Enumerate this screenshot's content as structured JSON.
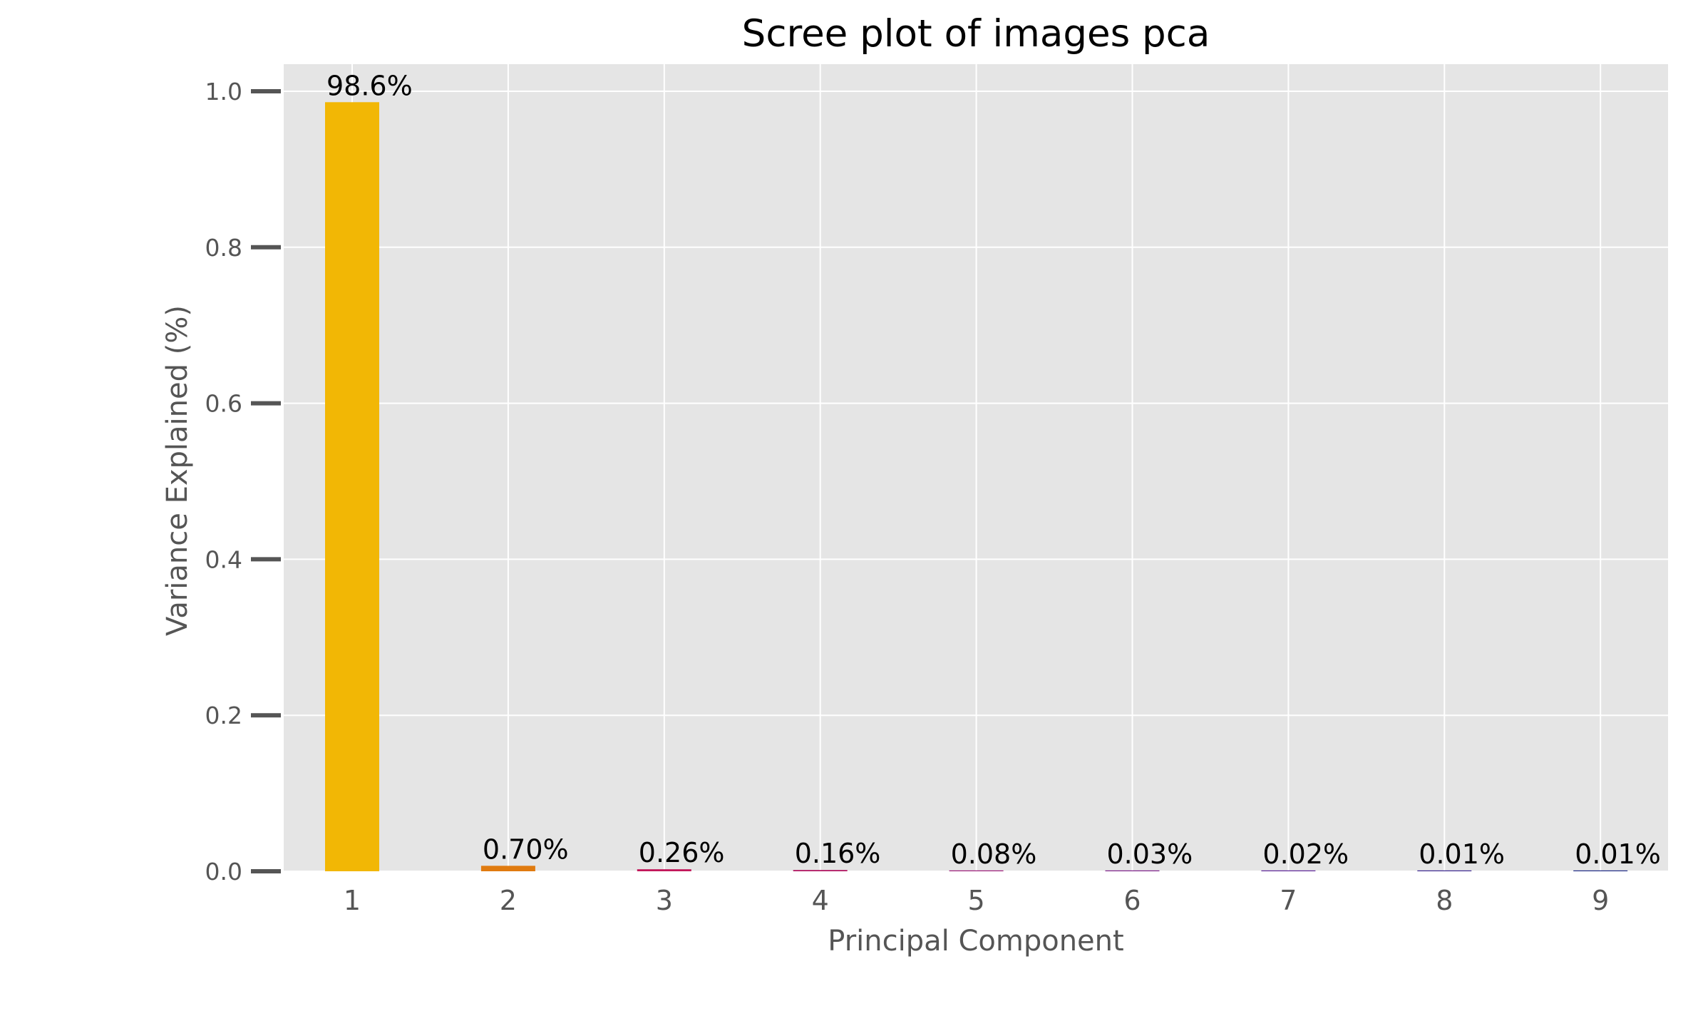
{
  "chart_data": {
    "type": "bar",
    "title": "Scree plot of images pca",
    "xlabel": "Principal Component",
    "ylabel": "Variance Explained (%)",
    "categories": [
      "1",
      "2",
      "3",
      "4",
      "5",
      "6",
      "7",
      "8",
      "9"
    ],
    "values": [
      0.986,
      0.007,
      0.0026,
      0.0016,
      0.0008,
      0.0003,
      0.0002,
      0.0001,
      0.0001
    ],
    "data_labels": [
      "98.6%",
      "0.70%",
      "0.26%",
      "0.16%",
      "0.08%",
      "0.03%",
      "0.02%",
      "0.01%",
      "0.01%"
    ],
    "bar_colors": [
      "#f2b705",
      "#e07b10",
      "#c2185b",
      "#b0125f",
      "#9c1a78",
      "#7e1f8a",
      "#5c2398",
      "#3a268f",
      "#1f2a86"
    ],
    "ylim": [
      0,
      1.0
    ],
    "yticks": [
      0.0,
      0.2,
      0.4,
      0.6,
      0.8,
      1.0
    ],
    "ytick_labels": [
      "0.0",
      "0.2",
      "0.4",
      "0.6",
      "0.8",
      "1.0"
    ],
    "grid": true,
    "background_color": "#e5e5e5",
    "grid_color": "#ffffff",
    "tick_color": "#555555"
  }
}
